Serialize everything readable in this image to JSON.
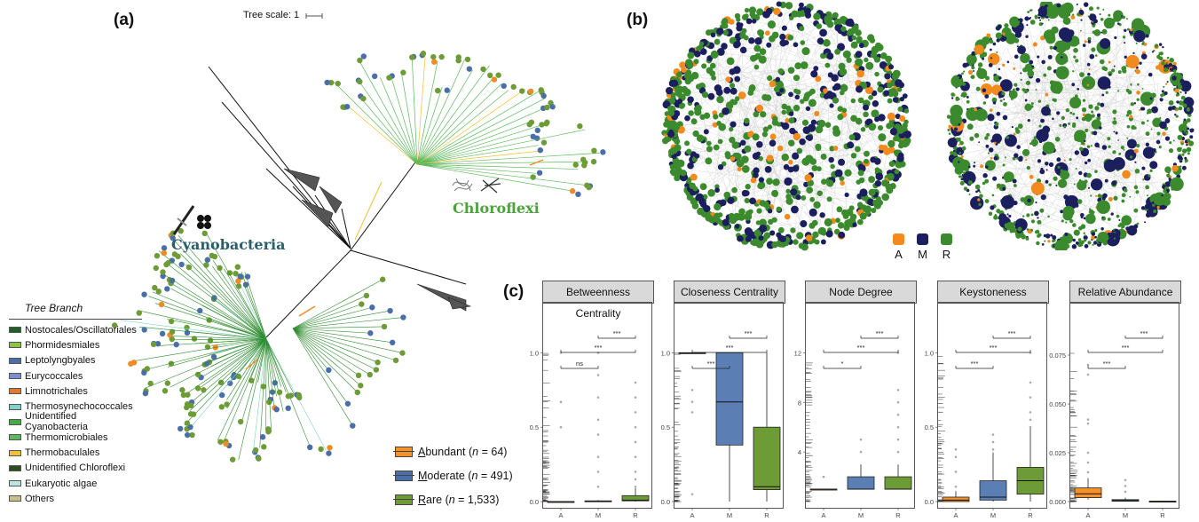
{
  "panels": {
    "a": "(a)",
    "b": "(b)",
    "c": "(c)"
  },
  "tree": {
    "scale_label": "Tree scale: 1",
    "clades": {
      "cyanobacteria": "Cyanobacteria",
      "chloroflexi": "Chloroflexi"
    },
    "legend_title": "Tree Branch",
    "branch_legend": [
      {
        "label": "Nostocales/Oscillatoriales",
        "color": "#1f5f1f"
      },
      {
        "label": "Phormidesmiales",
        "color": "#8cc63f"
      },
      {
        "label": "Leptolyngbyales",
        "color": "#4a6fa8"
      },
      {
        "label": "Eurycoccales",
        "color": "#7b8ed0"
      },
      {
        "label": "Limnotrichales",
        "color": "#e07a2a"
      },
      {
        "label": "Thermosynechococcales",
        "color": "#7fd3c8"
      },
      {
        "label": "Unidentified Cyanobacteria",
        "color": "#3fae3f"
      },
      {
        "label": "Thermomicrobiales",
        "color": "#5cb85c"
      },
      {
        "label": "Thermobaculales",
        "color": "#f2c230"
      },
      {
        "label": "Unidentified Chloroflexi",
        "color": "#2e4a1e"
      },
      {
        "label": "Eukaryotic algae",
        "color": "#b8e6e0"
      },
      {
        "label": "Others",
        "color": "#c8c08a"
      }
    ]
  },
  "abundance_legend": [
    {
      "letter": "A",
      "rest": "bundant",
      "n": "64",
      "color": "#f4922a"
    },
    {
      "letter": "M",
      "rest": "oderate",
      "n": "491",
      "color": "#4a6fa8"
    },
    {
      "letter": "R",
      "rest": "are",
      "n": "1,533",
      "color": "#6d9b35"
    }
  ],
  "network_legend": [
    {
      "label": "A",
      "color": "#f28a1e"
    },
    {
      "label": "M",
      "color": "#1b1f5e"
    },
    {
      "label": "R",
      "color": "#3c8a2e"
    }
  ],
  "chart_data": {
    "type": "boxplot",
    "groups": [
      "A",
      "M",
      "R"
    ],
    "group_colors": [
      "#f4922a",
      "#5b7fb5",
      "#6d9b35"
    ],
    "panels": [
      {
        "title": "Betweenness Centrality",
        "yticks": [
          "0.0",
          "0.5",
          "1.0"
        ],
        "ymin": 0,
        "ymax": 1.05,
        "boxes": [
          {
            "q1": 0,
            "median": 0,
            "q3": 0,
            "lo": 0,
            "hi": 0
          },
          {
            "q1": 0,
            "median": 0,
            "q3": 0.005,
            "lo": 0,
            "hi": 0.01
          },
          {
            "q1": 0.005,
            "median": 0.01,
            "q3": 0.04,
            "lo": 0,
            "hi": 0.09
          }
        ],
        "outliers": [
          [
            0.5,
            0.67,
            1.0
          ],
          [
            0.1,
            0.2,
            0.3,
            0.45,
            0.55,
            0.7,
            0.85,
            1.0
          ],
          [
            0.1,
            0.15,
            0.2,
            0.3,
            0.4,
            0.5,
            0.6,
            0.7,
            0.8
          ]
        ],
        "sig": [
          {
            "pair": "A-M",
            "label": "ns"
          },
          {
            "pair": "A-R",
            "label": "***"
          },
          {
            "pair": "M-R",
            "label": "***"
          }
        ]
      },
      {
        "title": "Closeness Centrality",
        "yticks": [
          "0.0",
          "0.5",
          "1.0"
        ],
        "ymin": 0,
        "ymax": 1.05,
        "boxes": [
          {
            "q1": 1.0,
            "median": 1.0,
            "q3": 1.0,
            "lo": 1.0,
            "hi": 1.0
          },
          {
            "q1": 0.38,
            "median": 0.67,
            "q3": 1.0,
            "lo": 0,
            "hi": 1.0
          },
          {
            "q1": 0.08,
            "median": 0.1,
            "q3": 0.5,
            "lo": 0,
            "hi": 1.0
          }
        ],
        "outliers": [
          [
            0.05,
            0.6,
            0.67,
            0.75
          ],
          [],
          []
        ],
        "sig": [
          {
            "pair": "A-M",
            "label": "***"
          },
          {
            "pair": "A-R",
            "label": "***"
          },
          {
            "pair": "M-R",
            "label": "***"
          }
        ]
      },
      {
        "title": "Node Degree",
        "yticks": [
          "4",
          "8",
          "12"
        ],
        "ymin": 0,
        "ymax": 12.6,
        "boxes": [
          {
            "q1": 1,
            "median": 1,
            "q3": 1,
            "lo": 1,
            "hi": 1
          },
          {
            "q1": 1,
            "median": 1,
            "q3": 2,
            "lo": 1,
            "hi": 3
          },
          {
            "q1": 1,
            "median": 1,
            "q3": 2,
            "lo": 1,
            "hi": 3
          }
        ],
        "outliers": [
          [
            2
          ],
          [
            4,
            5
          ],
          [
            4,
            5,
            6,
            7,
            8,
            9,
            12
          ]
        ],
        "sig": [
          {
            "pair": "A-M",
            "label": "*"
          },
          {
            "pair": "A-R",
            "label": "***"
          },
          {
            "pair": "M-R",
            "label": "***"
          }
        ]
      },
      {
        "title": "Keystoneness",
        "yticks": [
          "0.0",
          "0.5",
          "1.0"
        ],
        "ymin": 0,
        "ymax": 1.05,
        "boxes": [
          {
            "q1": 0,
            "median": 0.01,
            "q3": 0.03,
            "lo": 0,
            "hi": 0.07
          },
          {
            "q1": 0.01,
            "median": 0.03,
            "q3": 0.14,
            "lo": 0,
            "hi": 0.33
          },
          {
            "q1": 0.05,
            "median": 0.14,
            "q3": 0.23,
            "lo": 0,
            "hi": 0.5
          }
        ],
        "outliers": [
          [
            0.1,
            0.2,
            0.3,
            0.35
          ],
          [
            0.35,
            0.4,
            0.45
          ],
          [
            0.5,
            0.55,
            0.6,
            0.7,
            0.8,
            1.0
          ]
        ],
        "sig": [
          {
            "pair": "A-M",
            "label": "***"
          },
          {
            "pair": "A-R",
            "label": "***"
          },
          {
            "pair": "M-R",
            "label": "***"
          }
        ]
      },
      {
        "title": "Relative Abundance",
        "yticks": [
          "0.000",
          "0.025",
          "0.050",
          "0.075"
        ],
        "ymin": 0,
        "ymax": 0.08,
        "boxes": [
          {
            "q1": 0.002,
            "median": 0.004,
            "q3": 0.007,
            "lo": 0.001,
            "hi": 0.012
          },
          {
            "q1": 0.0002,
            "median": 0.0005,
            "q3": 0.001,
            "lo": 0,
            "hi": 0.002
          },
          {
            "q1": 0,
            "median": 0.0001,
            "q3": 0.0002,
            "lo": 0,
            "hi": 0.0004
          }
        ],
        "outliers": [
          [
            0.015,
            0.02,
            0.025,
            0.04,
            0.042,
            0.065,
            0.07
          ],
          [
            0.005,
            0.008,
            0.011
          ],
          []
        ],
        "sig": [
          {
            "pair": "A-M",
            "label": "***"
          },
          {
            "pair": "A-R",
            "label": "***"
          },
          {
            "pair": "M-R",
            "label": "***"
          }
        ]
      }
    ]
  }
}
